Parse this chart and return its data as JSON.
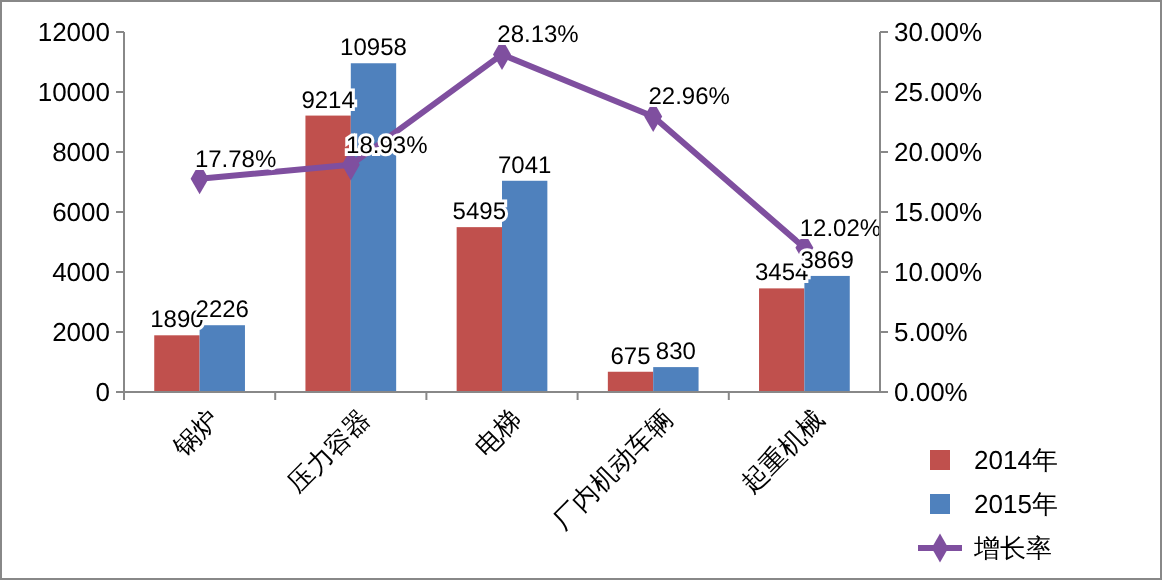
{
  "chart_data": {
    "type": "bar",
    "categories": [
      "锅炉",
      "压力容器",
      "电梯",
      "厂内机动车辆",
      "起重机械"
    ],
    "series": [
      {
        "name": "2014年",
        "color": "#c0504d",
        "values": [
          1890,
          9214,
          5495,
          675,
          3454
        ],
        "value_labels": [
          "1890",
          "9214",
          "5495",
          "675",
          "3454"
        ]
      },
      {
        "name": "2015年",
        "color": "#4f81bd",
        "values": [
          2226,
          10958,
          7041,
          830,
          3869
        ],
        "value_labels": [
          "2226",
          "10958",
          "7041",
          "830",
          "3869"
        ]
      },
      {
        "name": "增长率",
        "type": "line",
        "axis": "y2",
        "color": "#7f4f9f",
        "marker": "diamond",
        "values": [
          17.78,
          18.93,
          28.13,
          22.96,
          12.02
        ],
        "value_labels": [
          "17.78%",
          "18.93%",
          "28.13%",
          "22.96%",
          "12.02%"
        ]
      }
    ],
    "ylim": [
      0,
      12000
    ],
    "yticks": [
      0,
      2000,
      4000,
      6000,
      8000,
      10000,
      12000
    ],
    "y2lim": [
      0,
      30
    ],
    "y2ticks": [
      {
        "value": 0,
        "label": "0.00%"
      },
      {
        "value": 5,
        "label": "5.00%"
      },
      {
        "value": 10,
        "label": "10.00%"
      },
      {
        "value": 15,
        "label": "15.00%"
      },
      {
        "value": 20,
        "label": "20.00%"
      },
      {
        "value": 25,
        "label": "25.00%"
      },
      {
        "value": 30,
        "label": "30.00%"
      }
    ],
    "legend": "right"
  }
}
